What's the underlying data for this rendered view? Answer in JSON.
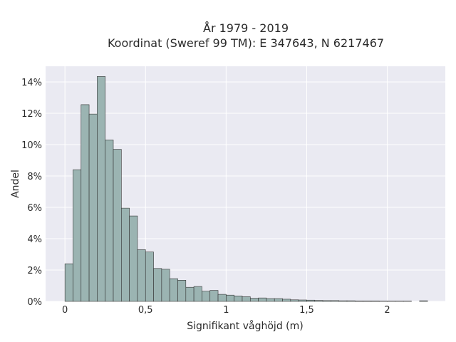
{
  "chart_data": {
    "type": "bar",
    "title_line1": "År 1979 - 2019",
    "title_line2": "Koordinat (Sweref 99 TM): E 347643, N 6217467",
    "xlabel": "Signifikant våghöjd (m)",
    "ylabel": "Andel",
    "xlim": [
      -0.12,
      2.36
    ],
    "ylim": [
      0,
      15
    ],
    "grid": true,
    "bin_width": 0.05,
    "bin_start": 0,
    "values": [
      2.4,
      8.4,
      12.55,
      11.95,
      14.35,
      10.3,
      9.7,
      5.95,
      5.45,
      3.3,
      3.15,
      2.1,
      2.05,
      1.45,
      1.35,
      0.9,
      0.95,
      0.65,
      0.7,
      0.45,
      0.4,
      0.35,
      0.3,
      0.2,
      0.22,
      0.18,
      0.18,
      0.14,
      0.1,
      0.09,
      0.08,
      0.06,
      0.05,
      0.05,
      0.04,
      0.04,
      0.03,
      0.03,
      0.03,
      0.02,
      0.02,
      0.02,
      0.02,
      0.0,
      0.04
    ],
    "xticks": [
      {
        "value": 0,
        "label": "0"
      },
      {
        "value": 0.5,
        "label": "0,5"
      },
      {
        "value": 1,
        "label": "1"
      },
      {
        "value": 1.5,
        "label": "1,5"
      },
      {
        "value": 2,
        "label": "2"
      }
    ],
    "yticks": [
      {
        "value": 0,
        "label": "0%"
      },
      {
        "value": 2,
        "label": "2%"
      },
      {
        "value": 4,
        "label": "4%"
      },
      {
        "value": 6,
        "label": "6%"
      },
      {
        "value": 8,
        "label": "8%"
      },
      {
        "value": 10,
        "label": "10%"
      },
      {
        "value": 12,
        "label": "12%"
      },
      {
        "value": 14,
        "label": "14%"
      }
    ],
    "colors": {
      "bar_fill": "#9bb4b2",
      "bar_stroke": "#333333",
      "plot_bg": "#eaeaf2",
      "grid": "#ffffff"
    }
  }
}
